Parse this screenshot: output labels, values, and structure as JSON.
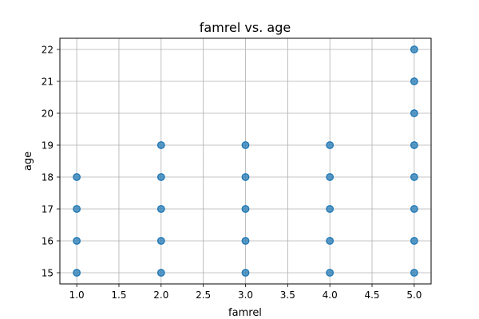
{
  "chart_data": {
    "type": "scatter",
    "title": "famrel vs. age",
    "xlabel": "famrel",
    "ylabel": "age",
    "xlim": [
      0.8,
      5.2
    ],
    "ylim": [
      14.65,
      22.35
    ],
    "xticks": [
      "1.0",
      "1.5",
      "2.0",
      "2.5",
      "3.0",
      "3.5",
      "4.0",
      "4.5",
      "5.0"
    ],
    "yticks": [
      "15",
      "16",
      "17",
      "18",
      "19",
      "20",
      "21",
      "22"
    ],
    "grid": true,
    "legend": "none",
    "color": "#1f77b4",
    "points": [
      {
        "x": 1,
        "y": 15
      },
      {
        "x": 1,
        "y": 16
      },
      {
        "x": 1,
        "y": 17
      },
      {
        "x": 1,
        "y": 18
      },
      {
        "x": 2,
        "y": 15
      },
      {
        "x": 2,
        "y": 16
      },
      {
        "x": 2,
        "y": 17
      },
      {
        "x": 2,
        "y": 18
      },
      {
        "x": 2,
        "y": 19
      },
      {
        "x": 3,
        "y": 15
      },
      {
        "x": 3,
        "y": 16
      },
      {
        "x": 3,
        "y": 17
      },
      {
        "x": 3,
        "y": 18
      },
      {
        "x": 3,
        "y": 19
      },
      {
        "x": 4,
        "y": 15
      },
      {
        "x": 4,
        "y": 16
      },
      {
        "x": 4,
        "y": 17
      },
      {
        "x": 4,
        "y": 18
      },
      {
        "x": 4,
        "y": 19
      },
      {
        "x": 5,
        "y": 15
      },
      {
        "x": 5,
        "y": 16
      },
      {
        "x": 5,
        "y": 17
      },
      {
        "x": 5,
        "y": 18
      },
      {
        "x": 5,
        "y": 19
      },
      {
        "x": 5,
        "y": 20
      },
      {
        "x": 5,
        "y": 21
      },
      {
        "x": 5,
        "y": 22
      }
    ]
  }
}
